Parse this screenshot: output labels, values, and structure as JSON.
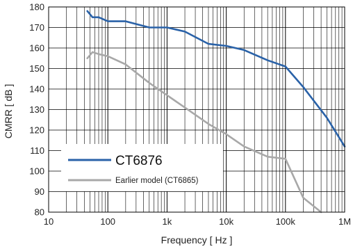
{
  "chart_data": {
    "type": "line",
    "xlabel": "Frequency [ Hz ]",
    "ylabel": "CMRR [ dB ]",
    "xscale": "log",
    "xlim": [
      10,
      1000000
    ],
    "ylim": [
      80,
      180
    ],
    "x_ticks": [
      {
        "value": 10,
        "label": "10"
      },
      {
        "value": 100,
        "label": "100"
      },
      {
        "value": 1000,
        "label": "1k"
      },
      {
        "value": 10000,
        "label": "10k"
      },
      {
        "value": 100000,
        "label": "100k"
      },
      {
        "value": 1000000,
        "label": "1M"
      }
    ],
    "y_ticks": [
      80,
      90,
      100,
      110,
      120,
      130,
      140,
      150,
      160,
      170,
      180
    ],
    "grid": true,
    "legend_position": "bottom-left",
    "series": [
      {
        "name": "CT6876",
        "color": "#2a62a8",
        "points": [
          [
            45,
            178
          ],
          [
            55,
            175
          ],
          [
            70,
            175
          ],
          [
            100,
            173
          ],
          [
            200,
            173
          ],
          [
            500,
            170
          ],
          [
            1000,
            170
          ],
          [
            2000,
            168
          ],
          [
            5000,
            162
          ],
          [
            10000,
            161
          ],
          [
            20000,
            159
          ],
          [
            50000,
            154
          ],
          [
            100000,
            151
          ],
          [
            200000,
            141
          ],
          [
            500000,
            126
          ],
          [
            1000000,
            112
          ]
        ]
      },
      {
        "name": "Earlier model (CT6865)",
        "color": "#a8a8a8",
        "points": [
          [
            45,
            155
          ],
          [
            55,
            158
          ],
          [
            70,
            157
          ],
          [
            100,
            156
          ],
          [
            200,
            152
          ],
          [
            500,
            143
          ],
          [
            1000,
            137
          ],
          [
            2000,
            131
          ],
          [
            5000,
            123
          ],
          [
            10000,
            118
          ],
          [
            20000,
            112
          ],
          [
            50000,
            107
          ],
          [
            100000,
            106
          ],
          [
            200000,
            87
          ],
          [
            400000,
            80
          ]
        ]
      }
    ]
  }
}
